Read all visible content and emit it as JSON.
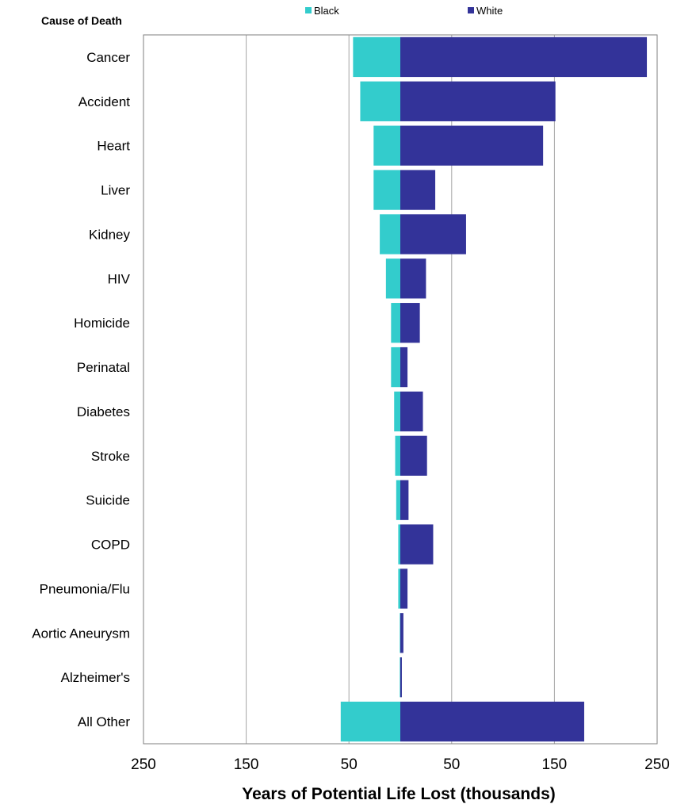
{
  "chart_data": {
    "type": "bar",
    "orientation": "horizontal-diverging",
    "title": "",
    "ylabel": "Cause of Death",
    "xlabel": "Years of Potential Life Lost (thousands)",
    "x_tick_labels": [
      "250",
      "150",
      "50",
      "50",
      "150",
      "250"
    ],
    "xlim": [
      -250,
      250
    ],
    "grid": "vertical",
    "legend_position": "top",
    "categories": [
      "Cancer",
      "Accident",
      "Heart",
      "Liver",
      "Kidney",
      "HIV",
      "Homicide",
      "Perinatal",
      "Diabetes",
      "Stroke",
      "Suicide",
      "COPD",
      "Pneumonia/Flu",
      "Aortic Aneurysm",
      "Alzheimer's",
      "All Other"
    ],
    "series": [
      {
        "name": "Black",
        "color": "#33cccc",
        "side": "left",
        "values": [
          46,
          39,
          26,
          26,
          20,
          14,
          9,
          9,
          6,
          5,
          4,
          2,
          2,
          0.5,
          0.5,
          58
        ]
      },
      {
        "name": "White",
        "color": "#333399",
        "side": "right",
        "values": [
          240,
          151,
          139,
          34,
          64,
          25,
          19,
          7,
          22,
          26,
          8,
          32,
          7,
          3,
          1.5,
          179
        ]
      }
    ]
  }
}
